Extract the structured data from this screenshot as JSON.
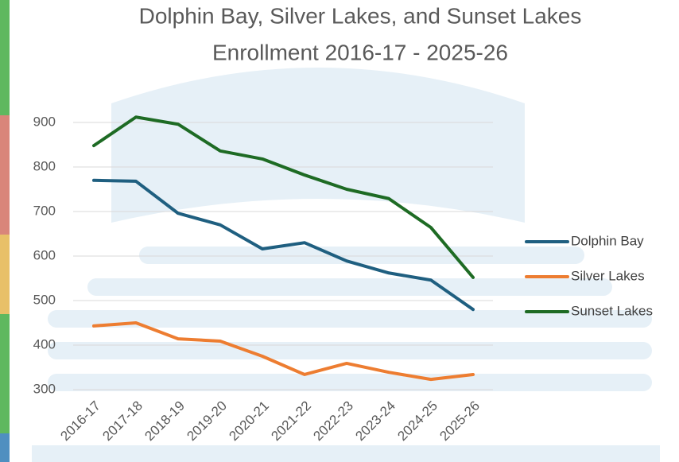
{
  "chart_data": {
    "type": "line",
    "title": "Dolphin Bay, Silver Lakes, and Sunset Lakes",
    "subtitle": "Enrollment 2016-17 - 2025-26",
    "categories": [
      "2016-17",
      "2017-18",
      "2018-19",
      "2019-20",
      "2020-21",
      "2021-22",
      "2022-23",
      "2023-24",
      "2024-25",
      "2025-26"
    ],
    "series": [
      {
        "name": "Dolphin Bay",
        "color": "#1f5f80",
        "values": [
          770,
          768,
          696,
          670,
          616,
          630,
          589,
          562,
          546,
          480
        ]
      },
      {
        "name": "Silver Lakes",
        "color": "#ed7d31",
        "values": [
          443,
          450,
          414,
          409,
          375,
          334,
          359,
          339,
          323,
          334
        ]
      },
      {
        "name": "Sunset Lakes",
        "color": "#1e6b24",
        "values": [
          848,
          912,
          896,
          836,
          818,
          782,
          750,
          729,
          664,
          552
        ]
      }
    ],
    "ylim": [
      300,
      900
    ],
    "yticks": [
      300,
      400,
      500,
      600,
      700,
      800,
      900
    ],
    "grid": true,
    "legend": "right"
  }
}
